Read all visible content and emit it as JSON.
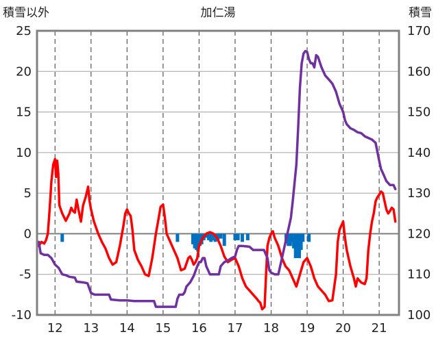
{
  "chart_data": {
    "type": "line",
    "title": "加仁湯",
    "ylabel_left": "積雪以外",
    "ylabel_right": "積雪",
    "x_range": [
      11.5,
      21.55
    ],
    "x_ticks": [
      12,
      13,
      14,
      15,
      16,
      17,
      18,
      19,
      20,
      21
    ],
    "ylim_left": [
      -10,
      25
    ],
    "yticks_left": [
      -10,
      -5,
      0,
      5,
      10,
      15,
      20,
      25
    ],
    "ylim_right": [
      100,
      170
    ],
    "yticks_right": [
      100,
      110,
      120,
      130,
      140,
      150,
      160,
      170
    ],
    "grid": {
      "vertical": "dashed",
      "horizontal": "solid"
    },
    "colors": {
      "temperature": "#ff0000",
      "snow_depth": "#7030a0",
      "precipitation": "#0070c0",
      "frame": "#808080"
    },
    "series": [
      {
        "kind": "line",
        "axis": "left",
        "color": "#ff0000",
        "points": [
          [
            11.55,
            -1.5
          ],
          [
            11.62,
            -1.0
          ],
          [
            11.7,
            -1.2
          ],
          [
            11.75,
            -0.8
          ],
          [
            11.8,
            0.0
          ],
          [
            11.85,
            3.0
          ],
          [
            11.9,
            6.5
          ],
          [
            11.95,
            8.5
          ],
          [
            12.0,
            9.2
          ],
          [
            12.03,
            7.0
          ],
          [
            12.06,
            9.0
          ],
          [
            12.09,
            7.5
          ],
          [
            12.12,
            3.5
          ],
          [
            12.2,
            2.5
          ],
          [
            12.3,
            1.6
          ],
          [
            12.4,
            2.5
          ],
          [
            12.45,
            3.2
          ],
          [
            12.5,
            2.8
          ],
          [
            12.55,
            2.6
          ],
          [
            12.6,
            4.2
          ],
          [
            12.65,
            3.0
          ],
          [
            12.72,
            1.5
          ],
          [
            12.78,
            3.5
          ],
          [
            12.85,
            4.5
          ],
          [
            12.92,
            5.8
          ],
          [
            12.96,
            4.0
          ],
          [
            13.0,
            3.0
          ],
          [
            13.08,
            1.5
          ],
          [
            13.2,
            0.0
          ],
          [
            13.3,
            -1.0
          ],
          [
            13.4,
            -1.8
          ],
          [
            13.5,
            -3.0
          ],
          [
            13.6,
            -3.8
          ],
          [
            13.7,
            -3.5
          ],
          [
            13.8,
            -1.5
          ],
          [
            13.9,
            1.0
          ],
          [
            13.95,
            2.5
          ],
          [
            14.0,
            3.0
          ],
          [
            14.05,
            2.5
          ],
          [
            14.1,
            2.2
          ],
          [
            14.15,
            0.5
          ],
          [
            14.2,
            -2.0
          ],
          [
            14.3,
            -3.2
          ],
          [
            14.4,
            -4.0
          ],
          [
            14.5,
            -5.0
          ],
          [
            14.6,
            -5.2
          ],
          [
            14.7,
            -3.0
          ],
          [
            14.8,
            0.0
          ],
          [
            14.88,
            2.0
          ],
          [
            14.93,
            3.3
          ],
          [
            15.0,
            3.6
          ],
          [
            15.05,
            2.0
          ],
          [
            15.1,
            0.0
          ],
          [
            15.2,
            -1.0
          ],
          [
            15.3,
            -2.0
          ],
          [
            15.4,
            -3.0
          ],
          [
            15.5,
            -4.5
          ],
          [
            15.6,
            -4.3
          ],
          [
            15.7,
            -3.0
          ],
          [
            15.75,
            -2.8
          ],
          [
            15.8,
            -3.2
          ],
          [
            15.85,
            -3.8
          ],
          [
            15.9,
            -3.5
          ],
          [
            15.95,
            -3.0
          ],
          [
            16.0,
            -1.5
          ],
          [
            16.1,
            -0.5
          ],
          [
            16.2,
            0.0
          ],
          [
            16.3,
            0.2
          ],
          [
            16.4,
            0.0
          ],
          [
            16.5,
            -0.5
          ],
          [
            16.6,
            -1.5
          ],
          [
            16.7,
            -2.8
          ],
          [
            16.8,
            -3.5
          ],
          [
            16.9,
            -3.2
          ],
          [
            17.0,
            -3.0
          ],
          [
            17.1,
            -4.0
          ],
          [
            17.2,
            -5.5
          ],
          [
            17.3,
            -6.5
          ],
          [
            17.4,
            -7.0
          ],
          [
            17.5,
            -7.5
          ],
          [
            17.6,
            -8.0
          ],
          [
            17.65,
            -8.3
          ],
          [
            17.7,
            -8.5
          ],
          [
            17.75,
            -9.3
          ],
          [
            17.82,
            -9.0
          ],
          [
            17.86,
            -5.0
          ],
          [
            17.9,
            -1.5
          ],
          [
            17.95,
            -0.5
          ],
          [
            18.0,
            0.0
          ],
          [
            18.05,
            0.3
          ],
          [
            18.1,
            -0.5
          ],
          [
            18.15,
            -1.0
          ],
          [
            18.2,
            -1.5
          ],
          [
            18.3,
            -3.0
          ],
          [
            18.4,
            -4.0
          ],
          [
            18.5,
            -4.5
          ],
          [
            18.6,
            -5.5
          ],
          [
            18.7,
            -6.5
          ],
          [
            18.8,
            -5.0
          ],
          [
            18.9,
            -3.5
          ],
          [
            19.0,
            -3.0
          ],
          [
            19.1,
            -4.0
          ],
          [
            19.2,
            -5.5
          ],
          [
            19.3,
            -6.5
          ],
          [
            19.4,
            -7.0
          ],
          [
            19.5,
            -7.5
          ],
          [
            19.6,
            -8.3
          ],
          [
            19.7,
            -8.2
          ],
          [
            19.8,
            -5.0
          ],
          [
            19.85,
            -1.0
          ],
          [
            19.9,
            0.5
          ],
          [
            19.95,
            1.0
          ],
          [
            20.0,
            1.5
          ],
          [
            20.05,
            -0.5
          ],
          [
            20.1,
            -2.0
          ],
          [
            20.2,
            -4.0
          ],
          [
            20.3,
            -5.5
          ],
          [
            20.35,
            -6.5
          ],
          [
            20.4,
            -5.5
          ],
          [
            20.5,
            -6.0
          ],
          [
            20.6,
            -6.2
          ],
          [
            20.65,
            -5.5
          ],
          [
            20.7,
            -2.0
          ],
          [
            20.75,
            0.0
          ],
          [
            20.8,
            1.5
          ],
          [
            20.85,
            2.5
          ],
          [
            20.9,
            4.0
          ],
          [
            20.95,
            4.5
          ],
          [
            21.0,
            4.8
          ],
          [
            21.05,
            5.2
          ],
          [
            21.1,
            5.0
          ],
          [
            21.15,
            4.0
          ],
          [
            21.2,
            3.0
          ],
          [
            21.25,
            2.5
          ],
          [
            21.3,
            2.8
          ],
          [
            21.35,
            3.2
          ],
          [
            21.4,
            3.0
          ],
          [
            21.45,
            1.5
          ]
        ]
      },
      {
        "kind": "line",
        "axis": "left",
        "color": "#7030a0",
        "points": [
          [
            11.55,
            -1.0
          ],
          [
            11.6,
            -2.4
          ],
          [
            11.7,
            -2.6
          ],
          [
            11.8,
            -2.6
          ],
          [
            11.9,
            -3.0
          ],
          [
            12.0,
            -3.8
          ],
          [
            12.1,
            -4.2
          ],
          [
            12.2,
            -5.0
          ],
          [
            12.3,
            -5.1
          ],
          [
            12.4,
            -5.3
          ],
          [
            12.55,
            -5.4
          ],
          [
            12.6,
            -5.9
          ],
          [
            12.8,
            -6.0
          ],
          [
            12.9,
            -6.1
          ],
          [
            13.0,
            -7.3
          ],
          [
            13.1,
            -7.5
          ],
          [
            13.3,
            -7.5
          ],
          [
            13.5,
            -7.5
          ],
          [
            13.55,
            -8.1
          ],
          [
            13.8,
            -8.2
          ],
          [
            14.0,
            -8.2
          ],
          [
            14.2,
            -8.3
          ],
          [
            14.5,
            -8.3
          ],
          [
            14.75,
            -8.3
          ],
          [
            14.8,
            -9.0
          ],
          [
            15.0,
            -9.0
          ],
          [
            15.2,
            -9.0
          ],
          [
            15.35,
            -9.0
          ],
          [
            15.4,
            -8.0
          ],
          [
            15.45,
            -7.5
          ],
          [
            15.55,
            -7.5
          ],
          [
            15.6,
            -7.2
          ],
          [
            15.65,
            -6.5
          ],
          [
            15.75,
            -6.0
          ],
          [
            15.85,
            -5.2
          ],
          [
            15.95,
            -4.0
          ],
          [
            16.0,
            -3.5
          ],
          [
            16.05,
            -3.5
          ],
          [
            16.1,
            -3.0
          ],
          [
            16.15,
            -3.0
          ],
          [
            16.2,
            -4.0
          ],
          [
            16.25,
            -4.5
          ],
          [
            16.3,
            -5.0
          ],
          [
            16.45,
            -5.0
          ],
          [
            16.55,
            -5.0
          ],
          [
            16.6,
            -4.0
          ],
          [
            16.7,
            -3.5
          ],
          [
            16.8,
            -3.3
          ],
          [
            16.9,
            -3.0
          ],
          [
            17.0,
            -2.8
          ],
          [
            17.05,
            -2.0
          ],
          [
            17.1,
            -1.5
          ],
          [
            17.2,
            -1.5
          ],
          [
            17.4,
            -1.6
          ],
          [
            17.5,
            -2.0
          ],
          [
            17.6,
            -2.0
          ],
          [
            17.7,
            -2.0
          ],
          [
            17.8,
            -2.0
          ],
          [
            17.85,
            -2.5
          ],
          [
            17.9,
            -3.0
          ],
          [
            17.95,
            -4.5
          ],
          [
            18.0,
            -4.8
          ],
          [
            18.1,
            -5.0
          ],
          [
            18.2,
            -5.0
          ],
          [
            18.3,
            -3.0
          ],
          [
            18.35,
            -2.0
          ],
          [
            18.4,
            -1.0
          ],
          [
            18.5,
            1.0
          ],
          [
            18.55,
            2.0
          ],
          [
            18.6,
            4.0
          ],
          [
            18.7,
            8.5
          ],
          [
            18.75,
            13.0
          ],
          [
            18.8,
            18.0
          ],
          [
            18.85,
            21.0
          ],
          [
            18.9,
            22.2
          ],
          [
            18.95,
            22.5
          ],
          [
            19.0,
            22.4
          ],
          [
            19.05,
            21.5
          ],
          [
            19.1,
            21.0
          ],
          [
            19.15,
            21.0
          ],
          [
            19.2,
            20.5
          ],
          [
            19.25,
            22.0
          ],
          [
            19.3,
            21.8
          ],
          [
            19.4,
            20.5
          ],
          [
            19.5,
            19.5
          ],
          [
            19.6,
            19.0
          ],
          [
            19.7,
            18.5
          ],
          [
            19.8,
            17.5
          ],
          [
            19.9,
            16.0
          ],
          [
            20.0,
            15.0
          ],
          [
            20.05,
            14.0
          ],
          [
            20.1,
            13.5
          ],
          [
            20.2,
            13.0
          ],
          [
            20.3,
            12.8
          ],
          [
            20.4,
            12.5
          ],
          [
            20.5,
            12.4
          ],
          [
            20.6,
            12.0
          ],
          [
            20.7,
            11.8
          ],
          [
            20.8,
            11.6
          ],
          [
            20.9,
            11.2
          ],
          [
            21.0,
            9.0
          ],
          [
            21.05,
            8.0
          ],
          [
            21.1,
            7.5
          ],
          [
            21.15,
            7.0
          ],
          [
            21.2,
            6.5
          ],
          [
            21.3,
            6.0
          ],
          [
            21.4,
            6.0
          ],
          [
            21.45,
            5.5
          ]
        ]
      },
      {
        "kind": "bar",
        "axis": "left",
        "color": "#0070c0",
        "points": [
          [
            12.2,
            -1.0
          ],
          [
            15.4,
            -1.0
          ],
          [
            15.83,
            -1.3
          ],
          [
            15.88,
            -1.8
          ],
          [
            15.93,
            -2.0
          ],
          [
            15.97,
            -2.2
          ],
          [
            16.02,
            -1.5
          ],
          [
            16.07,
            -1.3
          ],
          [
            16.13,
            -0.8
          ],
          [
            16.2,
            -0.5
          ],
          [
            16.27,
            -0.8
          ],
          [
            16.33,
            -1.0
          ],
          [
            16.38,
            -0.8
          ],
          [
            16.45,
            -1.0
          ],
          [
            16.52,
            -0.8
          ],
          [
            16.6,
            -0.6
          ],
          [
            16.7,
            -1.5
          ],
          [
            17.0,
            -0.8
          ],
          [
            17.08,
            -0.8
          ],
          [
            17.2,
            -1.0
          ],
          [
            17.35,
            -0.8
          ],
          [
            18.42,
            -1.2
          ],
          [
            18.48,
            -1.5
          ],
          [
            18.53,
            -1.5
          ],
          [
            18.58,
            -1.0
          ],
          [
            18.63,
            -1.8
          ],
          [
            18.68,
            -3.0
          ],
          [
            18.73,
            -3.0
          ],
          [
            18.78,
            -3.0
          ],
          [
            18.83,
            -2.0
          ],
          [
            18.88,
            -1.0
          ],
          [
            19.05,
            -1.0
          ],
          [
            18.6,
            -0.8
          ]
        ]
      }
    ]
  }
}
